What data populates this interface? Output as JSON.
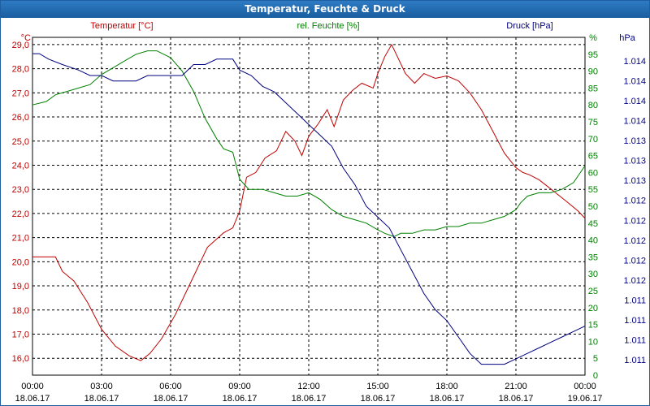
{
  "window": {
    "title": "Temperatur, Feuchte & Druck"
  },
  "chart_data": {
    "type": "line",
    "title": "Temperatur, Feuchte & Druck",
    "grid": true,
    "x_ticks": [
      {
        "time": "00:00",
        "date": "18.06.17"
      },
      {
        "time": "03:00",
        "date": "18.06.17"
      },
      {
        "time": "06:00",
        "date": "18.06.17"
      },
      {
        "time": "09:00",
        "date": "18.06.17"
      },
      {
        "time": "12:00",
        "date": "18.06.17"
      },
      {
        "time": "15:00",
        "date": "18.06.17"
      },
      {
        "time": "18:00",
        "date": "18.06.17"
      },
      {
        "time": "21:00",
        "date": "18.06.17"
      },
      {
        "time": "00:00",
        "date": "19.06.17"
      }
    ],
    "axes": {
      "temperature": {
        "label": "Temperatur [°C]",
        "unit": "°C",
        "color": "#c00000",
        "range": [
          15.3,
          29.3
        ],
        "ticks": [
          "16,0",
          "17,0",
          "18,0",
          "19,0",
          "20,0",
          "21,0",
          "22,0",
          "23,0",
          "24,0",
          "25,0",
          "26,0",
          "27,0",
          "28,0",
          "29,0"
        ]
      },
      "humidity": {
        "label": "rel. Feuchte [%]",
        "unit": "%",
        "color": "#008000",
        "range": [
          0,
          100
        ],
        "ticks": [
          "0",
          "5",
          "10",
          "15",
          "20",
          "25",
          "30",
          "35",
          "40",
          "45",
          "50",
          "55",
          "60",
          "65",
          "70",
          "75",
          "80",
          "85",
          "90",
          "95"
        ]
      },
      "pressure": {
        "label": "Druck [hPa]",
        "unit": "hPa",
        "color": "#000080",
        "ticks": [
          "1.011",
          "1.011",
          "1.011",
          "1.011",
          "1.012",
          "1.012",
          "1.012",
          "1.012",
          "1.012",
          "1.013",
          "1.013",
          "1.013",
          "1.014",
          "1.014",
          "1.014",
          "1.014"
        ]
      }
    },
    "x_hours_note": "hours since 18.06.17 00:00",
    "series": [
      {
        "name": "Temperatur [°C]",
        "axis": "temperature",
        "color": "#c00000",
        "x": [
          0,
          0.5,
          1,
          1.3,
          1.8,
          2.4,
          3,
          3.6,
          4.2,
          4.7,
          5.1,
          5.6,
          6.2,
          6.9,
          7.6,
          8.3,
          8.7,
          9,
          9.3,
          9.7,
          10.1,
          10.6,
          11,
          11.4,
          11.7,
          12,
          12.4,
          12.8,
          13.1,
          13.5,
          13.9,
          14.3,
          14.8,
          15,
          15.3,
          15.6,
          15.9,
          16.2,
          16.6,
          17,
          17.5,
          18,
          18.5,
          19,
          19.5,
          20,
          20.5,
          21,
          21.3,
          21.6,
          22,
          22.4,
          22.8,
          23.2,
          23.7,
          24
        ],
        "y": [
          20.2,
          20.2,
          20.2,
          19.6,
          19.2,
          18.3,
          17.2,
          16.5,
          16.1,
          15.9,
          16.2,
          16.8,
          17.8,
          19.2,
          20.6,
          21.2,
          21.4,
          22.1,
          23.5,
          23.7,
          24.3,
          24.6,
          25.4,
          25.0,
          24.4,
          25.2,
          25.7,
          26.3,
          25.6,
          26.7,
          27.1,
          27.4,
          27.2,
          27.8,
          28.5,
          29.0,
          28.4,
          27.8,
          27.4,
          27.8,
          27.6,
          27.7,
          27.5,
          27.0,
          26.3,
          25.4,
          24.5,
          23.9,
          23.7,
          23.6,
          23.4,
          23.1,
          22.8,
          22.5,
          22.1,
          21.8
        ]
      },
      {
        "name": "rel. Feuchte [%]",
        "axis": "humidity",
        "color": "#008000",
        "x": [
          0,
          0.6,
          1,
          1.5,
          2,
          2.5,
          3,
          3.5,
          4,
          4.5,
          5,
          5.4,
          6,
          6.5,
          7,
          7.5,
          8,
          8.3,
          8.7,
          9,
          9.4,
          10,
          10.5,
          11,
          11.5,
          12,
          12.5,
          13,
          13.5,
          14,
          14.5,
          15,
          15.3,
          15.7,
          16,
          16.5,
          17,
          17.5,
          18,
          18.5,
          19,
          19.5,
          20,
          20.5,
          21,
          21.2,
          21.5,
          22,
          22.5,
          23,
          23.5,
          24
        ],
        "y": [
          80,
          81,
          83,
          84,
          85,
          86,
          89,
          91,
          93,
          95,
          96,
          96,
          94,
          90,
          84,
          76,
          70,
          67,
          66,
          58,
          55,
          55,
          54,
          53,
          53,
          54,
          52,
          49,
          47,
          46,
          45,
          43,
          42,
          41,
          42,
          42,
          43,
          43,
          44,
          44,
          45,
          45,
          46,
          47,
          49,
          51,
          53,
          54,
          54,
          55,
          57,
          62
        ]
      },
      {
        "name": "Druck [hPa]",
        "axis": "pressure",
        "color": "#000080",
        "x": [
          0,
          0.3,
          0.7,
          1.3,
          2,
          2.5,
          3,
          3.5,
          4,
          4.5,
          5,
          5.5,
          6,
          6.5,
          7,
          7.5,
          8,
          8.3,
          8.7,
          9,
          9.5,
          10,
          10.5,
          11,
          11.5,
          12,
          12.5,
          13,
          13.5,
          14,
          14.5,
          15,
          15.5,
          16,
          16.5,
          17,
          17.5,
          18,
          18.5,
          19,
          19.5,
          20,
          20.5,
          21,
          21.5,
          22,
          22.5,
          23,
          23.5,
          24
        ],
        "y": [
          1.0144,
          1.0144,
          1.0143,
          1.0142,
          1.0141,
          1.014,
          1.014,
          1.0139,
          1.0139,
          1.0139,
          1.014,
          1.014,
          1.014,
          1.014,
          1.0142,
          1.0142,
          1.0143,
          1.0143,
          1.0143,
          1.0141,
          1.014,
          1.0138,
          1.0137,
          1.0135,
          1.0133,
          1.0131,
          1.0129,
          1.0127,
          1.0123,
          1.012,
          1.0116,
          1.0114,
          1.0112,
          1.0108,
          1.0104,
          1.01,
          1.0097,
          1.0095,
          1.0092,
          1.0089,
          1.0087,
          1.0087,
          1.0087,
          1.0088,
          1.0089,
          1.009,
          1.0091,
          1.0092,
          1.0093,
          1.0094
        ]
      }
    ]
  }
}
